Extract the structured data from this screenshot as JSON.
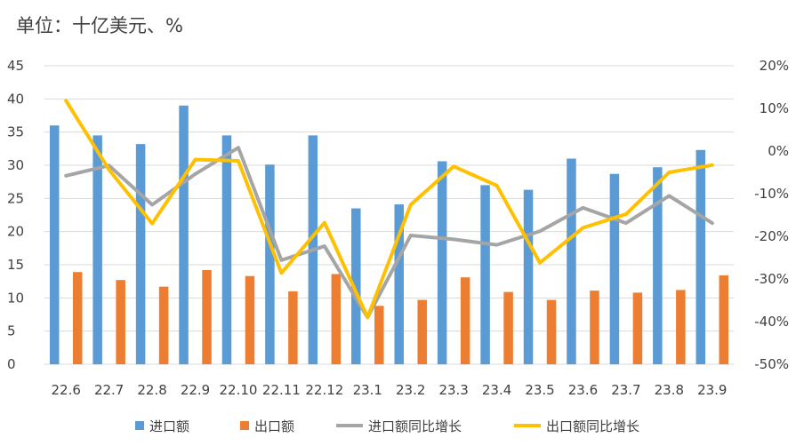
{
  "chart_data": {
    "type": "bar",
    "title": "单位：十亿美元、%",
    "categories": [
      "22.6",
      "22.7",
      "22.8",
      "22.9",
      "22.10",
      "22.11",
      "22.12",
      "23.1",
      "23.2",
      "23.3",
      "23.4",
      "23.5",
      "23.6",
      "23.7",
      "23.8",
      "23.9"
    ],
    "ylim": [
      0,
      45
    ],
    "y_ticks": [
      "0",
      "5",
      "10",
      "15",
      "20",
      "25",
      "30",
      "35",
      "40",
      "45"
    ],
    "y2lim": [
      -50,
      20
    ],
    "y2_ticks": [
      "-50%",
      "-40%",
      "-30%",
      "-20%",
      "-10%",
      "0%",
      "10%",
      "20%"
    ],
    "grid": true,
    "legend_position": "bottom",
    "series": [
      {
        "name": "进口额",
        "kind": "bar",
        "axis": "left",
        "color": "#5B9BD5",
        "values": [
          36.0,
          34.5,
          33.2,
          39.0,
          34.5,
          30.1,
          34.5,
          23.5,
          24.1,
          30.6,
          27.0,
          26.3,
          31.0,
          28.7,
          29.7,
          32.3
        ]
      },
      {
        "name": "出口额",
        "kind": "bar",
        "axis": "left",
        "color": "#ED7D31",
        "values": [
          13.9,
          12.7,
          11.7,
          14.2,
          13.3,
          11.0,
          13.6,
          8.8,
          9.7,
          13.1,
          10.9,
          9.7,
          11.1,
          10.8,
          11.2,
          13.4
        ]
      },
      {
        "name": "进口额同比增长",
        "kind": "line",
        "axis": "right",
        "color": "#A5A5A5",
        "values": [
          -5.8,
          -3.4,
          -12.6,
          -5.4,
          0.8,
          -25.6,
          -22.3,
          -39.0,
          -19.8,
          -20.7,
          -22.0,
          -18.8,
          -13.3,
          -16.9,
          -10.5,
          -16.9
        ]
      },
      {
        "name": "出口额同比增长",
        "kind": "line",
        "axis": "right",
        "color": "#FFC000",
        "values": [
          11.8,
          -4.4,
          -17.0,
          -2.0,
          -2.3,
          -28.6,
          -16.8,
          -39.0,
          -12.6,
          -3.6,
          -8.1,
          -26.2,
          -18.0,
          -14.8,
          -5.0,
          -3.3
        ]
      }
    ]
  }
}
